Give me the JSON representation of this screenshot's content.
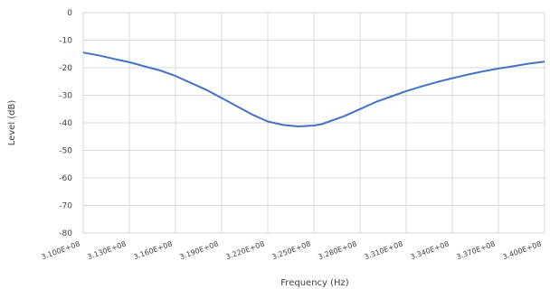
{
  "chart_data": {
    "type": "line",
    "title": "",
    "xlabel": "Frequency (Hz)",
    "ylabel": "Level (dB)",
    "xlim": [
      310000000,
      340000000
    ],
    "ylim": [
      -80,
      0
    ],
    "x_ticks": [
      310000000,
      313000000,
      316000000,
      319000000,
      322000000,
      325000000,
      328000000,
      331000000,
      334000000,
      337000000,
      340000000
    ],
    "x_tick_labels": [
      "3.100E+08",
      "3.130E+08",
      "3.160E+08",
      "3.190E+08",
      "3.220E+08",
      "3.250E+08",
      "3.280E+08",
      "3.310E+08",
      "3.340E+08",
      "3.370E+08",
      "3.400E+08"
    ],
    "y_ticks": [
      0,
      -10,
      -20,
      -30,
      -40,
      -50,
      -60,
      -70,
      -80
    ],
    "y_tick_labels": [
      "0",
      "-10",
      "-20",
      "-30",
      "-40",
      "-50",
      "-60",
      "-70",
      "-80"
    ],
    "grid": true,
    "legend": "none",
    "series": [
      {
        "color": "#4472c4",
        "x": [
          310000000,
          311000000,
          312000000,
          313000000,
          314000000,
          315000000,
          316000000,
          317000000,
          318000000,
          319000000,
          320000000,
          321000000,
          322000000,
          323000000,
          324000000,
          325000000,
          325500000,
          326000000,
          327000000,
          328000000,
          329000000,
          330000000,
          331000000,
          332000000,
          333000000,
          334000000,
          335000000,
          336000000,
          337000000,
          338000000,
          339000000,
          340000000
        ],
        "y": [
          -14.5,
          -15.5,
          -16.8,
          -18.0,
          -19.5,
          -21.0,
          -23.0,
          -25.5,
          -28.0,
          -31.0,
          -34.0,
          -37.0,
          -39.5,
          -40.8,
          -41.3,
          -41.0,
          -40.5,
          -39.5,
          -37.5,
          -35.0,
          -32.5,
          -30.5,
          -28.5,
          -26.8,
          -25.2,
          -23.8,
          -22.5,
          -21.3,
          -20.3,
          -19.4,
          -18.5,
          -17.8
        ]
      }
    ]
  }
}
